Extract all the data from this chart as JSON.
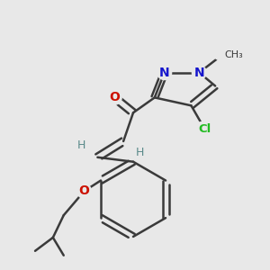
{
  "bg_color": "#e8e8e8",
  "bond_color": "#3a3a3a",
  "bond_width": 1.8,
  "fig_size": [
    3.0,
    3.0
  ],
  "dpi": 100,
  "colors": {
    "N": "#1515cc",
    "O": "#cc1100",
    "Cl": "#22bb22",
    "H": "#5a8a8a",
    "C": "#3a3a3a"
  }
}
